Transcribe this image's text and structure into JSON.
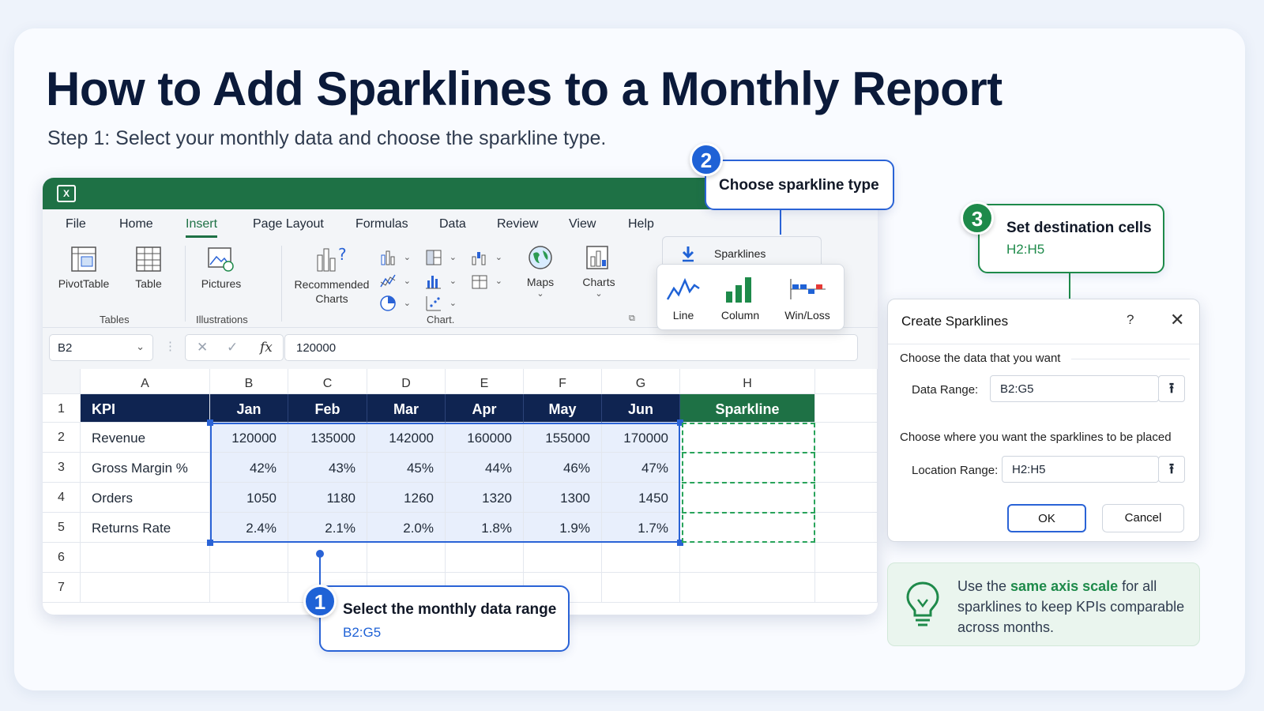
{
  "title": "How to Add Sparklines to a Monthly Report",
  "subtitle": "Step 1: Select your monthly data and choose the sparkline type.",
  "app": {
    "logo_text": "X",
    "menu": [
      "File",
      "Home",
      "Insert",
      "Page Layout",
      "Formulas",
      "Data",
      "Review",
      "View",
      "Help"
    ],
    "active_tab": "Insert",
    "ribbon": {
      "pivottable": "PivotTable",
      "table": "Table",
      "tables_group": "Tables",
      "pictures": "Pictures",
      "illustrations_group": "Illustrations",
      "recommended_charts": "Recommended Charts",
      "maps": "Maps",
      "charts": "Charts",
      "chart_group": "Chart.",
      "sparklines": "Sparklines"
    },
    "sparkline_types": [
      "Line",
      "Column",
      "Win/Loss"
    ],
    "name_box": "B2",
    "formula_value": "120000",
    "fx": "fx"
  },
  "sheet": {
    "col_headers": [
      "A",
      "B",
      "C",
      "D",
      "E",
      "F",
      "G",
      "H"
    ],
    "row_headers": [
      "1",
      "2",
      "3",
      "4",
      "5",
      "6",
      "7"
    ],
    "header_row": [
      "KPI",
      "Jan",
      "Feb",
      "Mar",
      "Apr",
      "May",
      "Jun",
      "Sparkline"
    ],
    "rows": [
      [
        "Revenue",
        "120000",
        "135000",
        "142000",
        "160000",
        "155000",
        "170000"
      ],
      [
        "Gross Margin %",
        "42%",
        "43%",
        "45%",
        "44%",
        "46%",
        "47%"
      ],
      [
        "Orders",
        "1050",
        "1180",
        "1260",
        "1320",
        "1300",
        "1450"
      ],
      [
        "Returns Rate",
        "2.4%",
        "2.1%",
        "2.0%",
        "1.8%",
        "1.9%",
        "1.7%"
      ]
    ]
  },
  "callouts": {
    "step1": {
      "num": "1",
      "title": "Select the monthly data range",
      "sub": "B2:G5"
    },
    "step2": {
      "num": "2",
      "title": "Choose sparkline type"
    },
    "step3": {
      "num": "3",
      "title": "Set destination cells",
      "sub": "H2:H5"
    }
  },
  "dialog": {
    "title": "Create Sparklines",
    "help": "?",
    "close": "✕",
    "choose_data": "Choose the data that you want",
    "data_range_label": "Data Range:",
    "data_range_value": "B2:G5",
    "choose_location": "Choose where you want the sparklines to be placed",
    "location_label": "Location Range:",
    "location_value": "H2:H5",
    "ok": "OK",
    "cancel": "Cancel"
  },
  "tip": {
    "pre": "Use the ",
    "bold": "same axis scale",
    "post": " for all sparklines to keep KPIs comparable across months."
  },
  "colors": {
    "excel_green": "#1e7145",
    "header_navy": "#0f2451",
    "accent_blue": "#2a63d6",
    "accent_green": "#1e8a4a"
  }
}
